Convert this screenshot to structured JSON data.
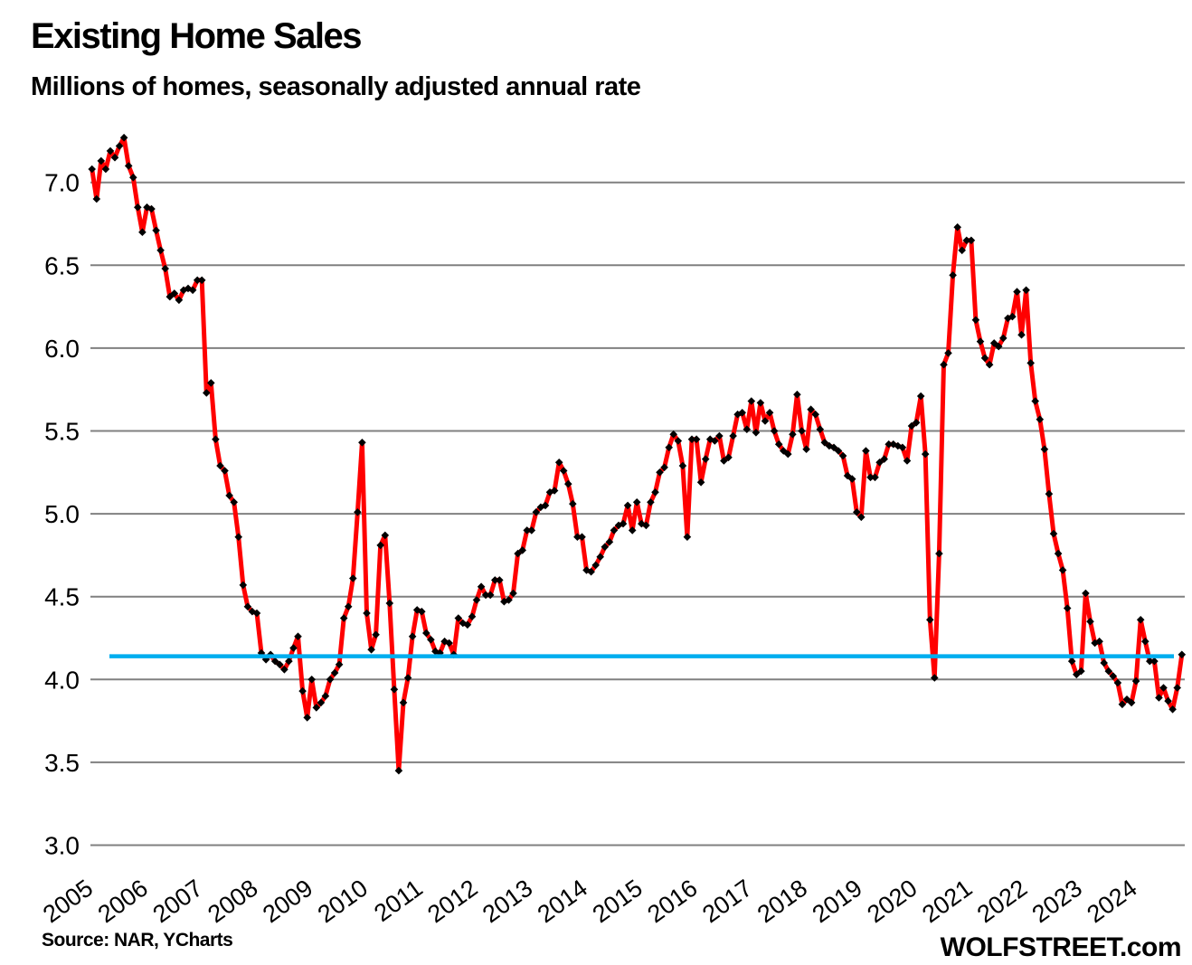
{
  "header": {
    "title": "Existing Home Sales",
    "subtitle": "Millions of homes, seasonally adjusted annual rate"
  },
  "footer": {
    "source": "Source: NAR, YCharts",
    "branding": "WOLFSTREET.com"
  },
  "colors": {
    "series_line": "#FF0000",
    "marker": "#000000",
    "reference_line": "#00AEEF",
    "gridline": "#808080",
    "text": "#000000"
  },
  "chart_data": {
    "type": "line",
    "title": "Existing Home Sales",
    "ylabel": "Millions of homes, seasonally adjusted annual rate",
    "x_start": "2005-01",
    "x_end": "2024-11",
    "x_tick_labels": [
      "2005",
      "2006",
      "2007",
      "2008",
      "2009",
      "2010",
      "2011",
      "2012",
      "2013",
      "2014",
      "2015",
      "2016",
      "2017",
      "2018",
      "2019",
      "2020",
      "2021",
      "2022",
      "2023",
      "2024"
    ],
    "y_tick_labels": [
      "7.0",
      "6.5",
      "6.0",
      "5.5",
      "5.0",
      "4.5",
      "4.0",
      "3.5",
      "3.0"
    ],
    "y_axis_range": [
      3.0,
      7.45
    ],
    "grid": true,
    "legend": false,
    "reference_line": {
      "value": 4.14,
      "color": "#00AEEF"
    },
    "series": [
      {
        "name": "Existing home sales (millions, SAAR)",
        "color": "#FF0000",
        "marker": "black-diamond",
        "values": [
          7.08,
          6.9,
          7.13,
          7.08,
          7.19,
          7.15,
          7.22,
          7.27,
          7.1,
          7.03,
          6.85,
          6.7,
          6.85,
          6.84,
          6.71,
          6.59,
          6.48,
          6.31,
          6.33,
          6.29,
          6.35,
          6.36,
          6.35,
          6.41,
          6.41,
          5.73,
          5.79,
          5.45,
          5.29,
          5.26,
          5.11,
          5.07,
          4.86,
          4.57,
          4.44,
          4.41,
          4.4,
          4.16,
          4.12,
          4.15,
          4.11,
          4.09,
          4.06,
          4.11,
          4.19,
          4.26,
          3.93,
          3.77,
          4.0,
          3.83,
          3.86,
          3.9,
          4.0,
          4.04,
          4.09,
          4.37,
          4.44,
          4.61,
          5.01,
          5.43,
          4.4,
          4.18,
          4.27,
          4.81,
          4.87,
          4.46,
          3.94,
          3.45,
          3.86,
          4.01,
          4.26,
          4.42,
          4.41,
          4.28,
          4.24,
          4.17,
          4.16,
          4.23,
          4.22,
          4.15,
          4.37,
          4.34,
          4.33,
          4.38,
          4.48,
          4.56,
          4.51,
          4.51,
          4.6,
          4.6,
          4.47,
          4.48,
          4.52,
          4.76,
          4.78,
          4.9,
          4.9,
          5.01,
          5.04,
          5.05,
          5.13,
          5.14,
          5.31,
          5.26,
          5.18,
          5.06,
          4.86,
          4.86,
          4.66,
          4.65,
          4.69,
          4.74,
          4.8,
          4.83,
          4.9,
          4.93,
          4.94,
          5.05,
          4.9,
          5.07,
          4.94,
          4.93,
          5.07,
          5.13,
          5.25,
          5.28,
          5.4,
          5.48,
          5.44,
          5.29,
          4.86,
          5.45,
          5.45,
          5.19,
          5.33,
          5.45,
          5.44,
          5.47,
          5.32,
          5.34,
          5.47,
          5.6,
          5.61,
          5.51,
          5.68,
          5.49,
          5.67,
          5.56,
          5.61,
          5.5,
          5.42,
          5.38,
          5.36,
          5.48,
          5.72,
          5.5,
          5.39,
          5.63,
          5.6,
          5.51,
          5.43,
          5.41,
          5.4,
          5.38,
          5.35,
          5.23,
          5.21,
          5.01,
          4.98,
          5.38,
          5.22,
          5.22,
          5.31,
          5.33,
          5.42,
          5.42,
          5.41,
          5.4,
          5.32,
          5.53,
          5.55,
          5.71,
          5.36,
          4.36,
          4.01,
          4.76,
          5.9,
          5.97,
          6.44,
          6.73,
          6.59,
          6.65,
          6.65,
          6.17,
          6.04,
          5.94,
          5.9,
          6.03,
          6.01,
          6.06,
          6.18,
          6.19,
          6.34,
          6.08,
          6.35,
          5.91,
          5.68,
          5.57,
          5.39,
          5.12,
          4.88,
          4.76,
          4.66,
          4.43,
          4.11,
          4.03,
          4.05,
          4.52,
          4.35,
          4.22,
          4.23,
          4.1,
          4.05,
          4.02,
          3.98,
          3.85,
          3.88,
          3.86,
          3.99,
          4.36,
          4.23,
          4.11,
          4.11,
          3.89,
          3.95,
          3.87,
          3.82,
          3.95,
          4.15
        ]
      }
    ]
  }
}
